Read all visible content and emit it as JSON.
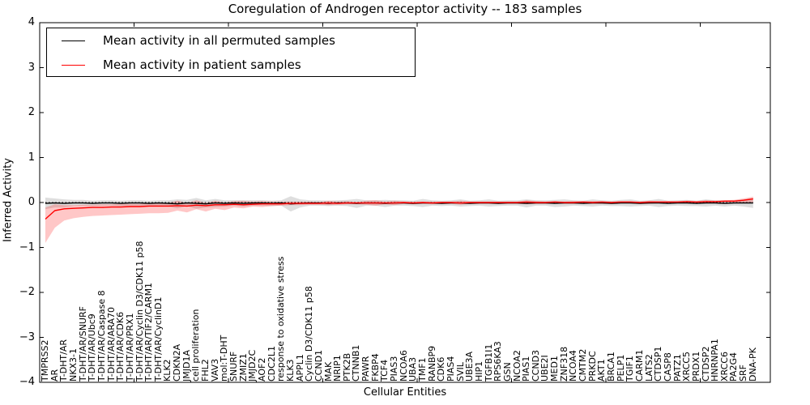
{
  "chart_data": {
    "type": "line",
    "title": "Coregulation of Androgen receptor activity -- 183 samples",
    "xlabel": "Cellular Entities",
    "ylabel": "Inferred Activity",
    "ylim": [
      -4,
      4
    ],
    "yticks": [
      4,
      3,
      2,
      1,
      0,
      -1,
      -2,
      -3,
      -4
    ],
    "ytick_labels": [
      "4",
      "3",
      "2",
      "1",
      "0",
      "−1",
      "−2",
      "−3",
      "−4"
    ],
    "x_major_tick_every": 10,
    "grid": false,
    "legend_position": "upper-left",
    "zero_reference_line": true,
    "categories": [
      "TMPRSS2",
      "AR",
      "T-DHT/AR",
      "NKX3-1",
      "T-DHT/AR/SNURF",
      "T-DHT/AR/Ubc9",
      "T-DHT/AR/Caspase 8",
      "T-DHT/AR/ARA70",
      "T-DHT/AR/CDK6",
      "T-DHT/AR/PRX1",
      "T-DHT/AR/Cyclin D3/CDK11 p58",
      "T-DHT/AR/TIF2/CARM1",
      "T-DHT/AR/CyclinD1",
      "KLK2",
      "CDKN2A",
      "JMJD1A",
      "cell proliferation",
      "FHL2",
      "VAV3",
      "mol:T-DHT",
      "SNURF",
      "ZMIZ1",
      "JMJD2C",
      "AOF2",
      "CDC2L1",
      "response to oxidative stress",
      "KLK3",
      "APPL1",
      "Cyclin D3/CDK11 p58",
      "CCND1",
      "MAK",
      "NRIP1",
      "PTK2B",
      "CTNNB1",
      "PAWR",
      "FKBP4",
      "TCF4",
      "PIAS3",
      "NCOA6",
      "UBA3",
      "TMF1",
      "RANBP9",
      "CDK6",
      "PIAS4",
      "SVIL",
      "UBE3A",
      "HIP1",
      "TGFB1I1",
      "RPS6KA3",
      "GSN",
      "NCOA2",
      "PIAS1",
      "CCND3",
      "UBE2I",
      "MED1",
      "ZNF318",
      "NCOA4",
      "CMTM2",
      "PRKDC",
      "AKT1",
      "BRCA1",
      "PELP1",
      "TGIF1",
      "CARM1",
      "LATS2",
      "CTDSP1",
      "CASP8",
      "PATZ1",
      "XRCC5",
      "PRDX1",
      "CTDSP2",
      "HNRNPA1",
      "XRCC6",
      "PA2G4",
      "SRF",
      "DNA-PK"
    ],
    "series": [
      {
        "name": "Mean activity in all permuted samples",
        "color": "#000000",
        "band_color": "rgba(0,0,0,0.13)",
        "values": [
          -0.02,
          -0.01,
          -0.02,
          -0.01,
          -0.01,
          -0.02,
          -0.01,
          -0.01,
          -0.02,
          -0.01,
          -0.01,
          -0.02,
          -0.01,
          -0.02,
          -0.03,
          -0.01,
          -0.02,
          -0.03,
          -0.01,
          -0.02,
          -0.01,
          -0.02,
          -0.01,
          -0.01,
          -0.02,
          -0.01,
          -0.03,
          -0.02,
          -0.01,
          -0.01,
          -0.02,
          -0.01,
          -0.01,
          -0.02,
          -0.01,
          -0.01,
          -0.02,
          -0.01,
          -0.01,
          -0.02,
          -0.01,
          -0.01,
          -0.02,
          -0.01,
          -0.01,
          -0.02,
          -0.01,
          -0.01,
          -0.02,
          -0.01,
          -0.01,
          -0.02,
          -0.01,
          -0.01,
          -0.02,
          -0.01,
          -0.01,
          -0.02,
          -0.01,
          -0.01,
          -0.02,
          -0.01,
          -0.01,
          -0.02,
          -0.01,
          -0.01,
          -0.02,
          -0.01,
          -0.01,
          -0.02,
          -0.01,
          -0.01,
          -0.02,
          -0.01,
          -0.01,
          -0.01
        ],
        "band_halfwidth": [
          0.13,
          0.1,
          0.09,
          0.07,
          0.07,
          0.06,
          0.06,
          0.06,
          0.06,
          0.06,
          0.06,
          0.06,
          0.06,
          0.07,
          0.1,
          0.07,
          0.12,
          0.08,
          0.09,
          0.07,
          0.06,
          0.07,
          0.06,
          0.06,
          0.06,
          0.06,
          0.17,
          0.09,
          0.06,
          0.06,
          0.06,
          0.06,
          0.07,
          0.1,
          0.06,
          0.06,
          0.08,
          0.06,
          0.06,
          0.06,
          0.09,
          0.06,
          0.06,
          0.06,
          0.08,
          0.06,
          0.06,
          0.08,
          0.06,
          0.06,
          0.06,
          0.09,
          0.06,
          0.06,
          0.08,
          0.08,
          0.06,
          0.06,
          0.08,
          0.06,
          0.06,
          0.07,
          0.08,
          0.06,
          0.06,
          0.09,
          0.06,
          0.06,
          0.07,
          0.06,
          0.08,
          0.06,
          0.07,
          0.06,
          0.08,
          0.11
        ]
      },
      {
        "name": "Mean activity in patient samples",
        "color": "#ff0000",
        "band_color": "rgba(255,0,0,0.22)",
        "values": [
          -0.37,
          -0.18,
          -0.14,
          -0.13,
          -0.12,
          -0.11,
          -0.11,
          -0.1,
          -0.1,
          -0.09,
          -0.09,
          -0.08,
          -0.08,
          -0.08,
          -0.07,
          -0.08,
          -0.06,
          -0.07,
          -0.05,
          -0.05,
          -0.04,
          -0.05,
          -0.04,
          -0.03,
          -0.03,
          -0.03,
          -0.02,
          -0.02,
          -0.02,
          -0.02,
          -0.01,
          -0.02,
          -0.01,
          -0.01,
          -0.01,
          -0.01,
          -0.01,
          -0.01,
          0,
          -0.01,
          0,
          -0.01,
          0,
          0,
          -0.01,
          0,
          0,
          0,
          0,
          0,
          0,
          0.01,
          0,
          0,
          0.01,
          0,
          0,
          0.01,
          0,
          0.01,
          0,
          0.01,
          0.01,
          0,
          0.01,
          0.01,
          0.01,
          0.01,
          0.02,
          0.01,
          0.02,
          0.02,
          0.03,
          0.03,
          0.05,
          0.08
        ],
        "band_lo": [
          -0.9,
          -0.56,
          -0.4,
          -0.35,
          -0.32,
          -0.3,
          -0.29,
          -0.28,
          -0.27,
          -0.26,
          -0.25,
          -0.24,
          -0.24,
          -0.23,
          -0.18,
          -0.22,
          -0.15,
          -0.2,
          -0.14,
          -0.17,
          -0.11,
          -0.13,
          -0.09,
          -0.1,
          -0.08,
          -0.07,
          -0.06,
          -0.06,
          -0.05,
          -0.05,
          -0.06,
          -0.05,
          -0.04,
          -0.04,
          -0.05,
          -0.07,
          -0.04,
          -0.06,
          -0.03,
          -0.04,
          -0.03,
          -0.04,
          -0.03,
          -0.03,
          -0.05,
          -0.03,
          -0.03,
          -0.03,
          -0.03,
          -0.03,
          -0.03,
          -0.04,
          -0.03,
          -0.03,
          -0.02,
          -0.03,
          -0.03,
          -0.02,
          -0.03,
          -0.03,
          -0.03,
          -0.02,
          -0.02,
          -0.03,
          -0.03,
          -0.02,
          -0.02,
          -0.02,
          -0.02,
          -0.02,
          -0.02,
          -0.01,
          -0.01,
          -0.01,
          0,
          -0.02
        ],
        "band_hi": [
          -0.11,
          -0.04,
          -0.06,
          -0.06,
          -0.05,
          -0.05,
          -0.04,
          -0.04,
          -0.03,
          -0.03,
          -0.03,
          -0.02,
          -0.02,
          -0.01,
          0.04,
          -0.01,
          0.05,
          -0.01,
          0.04,
          0,
          0.03,
          0.04,
          0.02,
          0.03,
          0.02,
          0.02,
          0.02,
          0.02,
          0.02,
          0.01,
          0.04,
          0.02,
          0.03,
          0.01,
          0.04,
          0.05,
          0.02,
          0.04,
          0.02,
          0.02,
          0.02,
          0.02,
          0.02,
          0.02,
          0.04,
          0.02,
          0.02,
          0.02,
          0.02,
          0.02,
          0.02,
          0.05,
          0.03,
          0.02,
          0.03,
          0.02,
          0.03,
          0.03,
          0.03,
          0.03,
          0.02,
          0.03,
          0.03,
          0.02,
          0.04,
          0.03,
          0.03,
          0.03,
          0.04,
          0.03,
          0.05,
          0.04,
          0.05,
          0.06,
          0.09,
          0.13
        ]
      }
    ]
  }
}
